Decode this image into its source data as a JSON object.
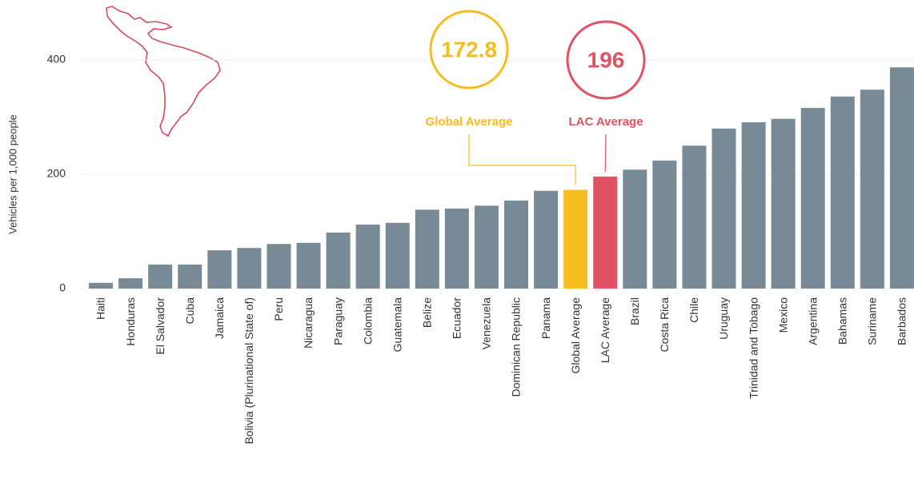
{
  "chart_data": {
    "type": "bar",
    "y_label": "Vehicles per 1,000 people",
    "categories": [
      "Haiti",
      "Honduras",
      "El Salvador",
      "Cuba",
      "Jamaica",
      "Bolivia (Plurinational State of)",
      "Peru",
      "Nicaragua",
      "Paraguay",
      "Colombia",
      "Guatemala",
      "Belize",
      "Ecuador",
      "Venezuela",
      "Dominican Republic",
      "Panama",
      "Global Average",
      "LAC Average",
      "Brazil",
      "Costa Rica",
      "Chile",
      "Uruguay",
      "Trinidad and Tobago",
      "Mexico",
      "Argentina",
      "Bahamas",
      "Suriname",
      "Barbados"
    ],
    "values": [
      10,
      18,
      42,
      42,
      67,
      71,
      78,
      80,
      98,
      112,
      115,
      138,
      140,
      145,
      154,
      171,
      172.8,
      196,
      208,
      224,
      250,
      280,
      291,
      297,
      316,
      336,
      348,
      387
    ],
    "colors": [
      "#778a96",
      "#778a96",
      "#778a96",
      "#778a96",
      "#778a96",
      "#778a96",
      "#778a96",
      "#778a96",
      "#778a96",
      "#778a96",
      "#778a96",
      "#778a96",
      "#778a96",
      "#778a96",
      "#778a96",
      "#778a96",
      "#f5bd1f",
      "#e05264",
      "#778a96",
      "#778a96",
      "#778a96",
      "#778a96",
      "#778a96",
      "#778a96",
      "#778a96",
      "#778a96",
      "#778a96",
      "#778a96"
    ],
    "ylim": [
      0,
      500
    ],
    "yticks": [
      0,
      200,
      400
    ],
    "grid": true
  }
}
